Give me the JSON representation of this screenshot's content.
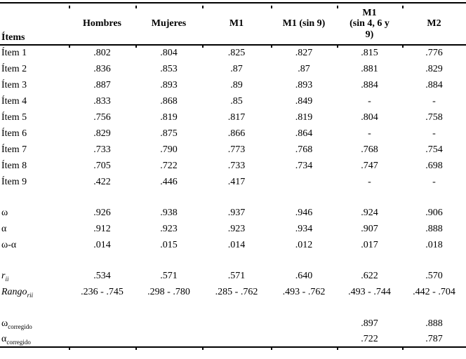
{
  "table": {
    "columns": [
      "Ítems",
      "Hombres",
      "Mujeres",
      "M1",
      "M1 (sin 9)",
      "M1\n(sin 4, 6 y\n9)",
      "M2"
    ],
    "item_rows": [
      {
        "label": "Ítem 1",
        "values": [
          ".802",
          ".804",
          ".825",
          ".827",
          ".815",
          ".776"
        ]
      },
      {
        "label": "Ítem 2",
        "values": [
          ".836",
          ".853",
          ".87",
          ".87",
          ".881",
          ".829"
        ]
      },
      {
        "label": "Ítem 3",
        "values": [
          ".887",
          ".893",
          ".89",
          ".893",
          ".884",
          ".884"
        ]
      },
      {
        "label": "Ítem 4",
        "values": [
          ".833",
          ".868",
          ".85",
          ".849",
          "-",
          "-"
        ]
      },
      {
        "label": "Ítem 5",
        "values": [
          ".756",
          ".819",
          ".817",
          ".819",
          ".804",
          ".758"
        ]
      },
      {
        "label": "Ítem 6",
        "values": [
          ".829",
          ".875",
          ".866",
          ".864",
          "-",
          "-"
        ]
      },
      {
        "label": "Ítem 7",
        "values": [
          ".733",
          ".790",
          ".773",
          ".768",
          ".768",
          ".754"
        ]
      },
      {
        "label": "Ítem 8",
        "values": [
          ".705",
          ".722",
          ".733",
          ".734",
          ".747",
          ".698"
        ]
      },
      {
        "label": "Ítem 9",
        "values": [
          ".422",
          ".446",
          ".417",
          "",
          "-",
          "-"
        ]
      }
    ],
    "reliability_rows": [
      {
        "label": "ω",
        "values": [
          ".926",
          ".938",
          ".937",
          ".946",
          ".924",
          ".906"
        ]
      },
      {
        "label": "α",
        "values": [
          ".912",
          ".923",
          ".923",
          ".934",
          ".907",
          ".888"
        ]
      },
      {
        "label": "ω-α",
        "values": [
          ".014",
          ".015",
          ".014",
          ".012",
          ".017",
          ".018"
        ]
      }
    ],
    "correlation_rows": [
      {
        "label_base": "r",
        "label_sub": "ii",
        "values": [
          ".534",
          ".571",
          ".571",
          ".640",
          ".622",
          ".570"
        ]
      },
      {
        "label_base": "Rango",
        "label_sub": "rii",
        "values": [
          ".236 - .745",
          ".298 - .780",
          ".285 - .762",
          ".493 - .762",
          ".493 - .744",
          ".442 - .704"
        ]
      }
    ],
    "corrected_rows": [
      {
        "label_base": "ω",
        "label_sub": "corregido",
        "values": [
          "",
          "",
          "",
          "",
          ".897",
          ".888"
        ]
      },
      {
        "label_base": "α",
        "label_sub": "corregido",
        "values": [
          "",
          "",
          "",
          "",
          ".722",
          ".787"
        ]
      }
    ]
  }
}
